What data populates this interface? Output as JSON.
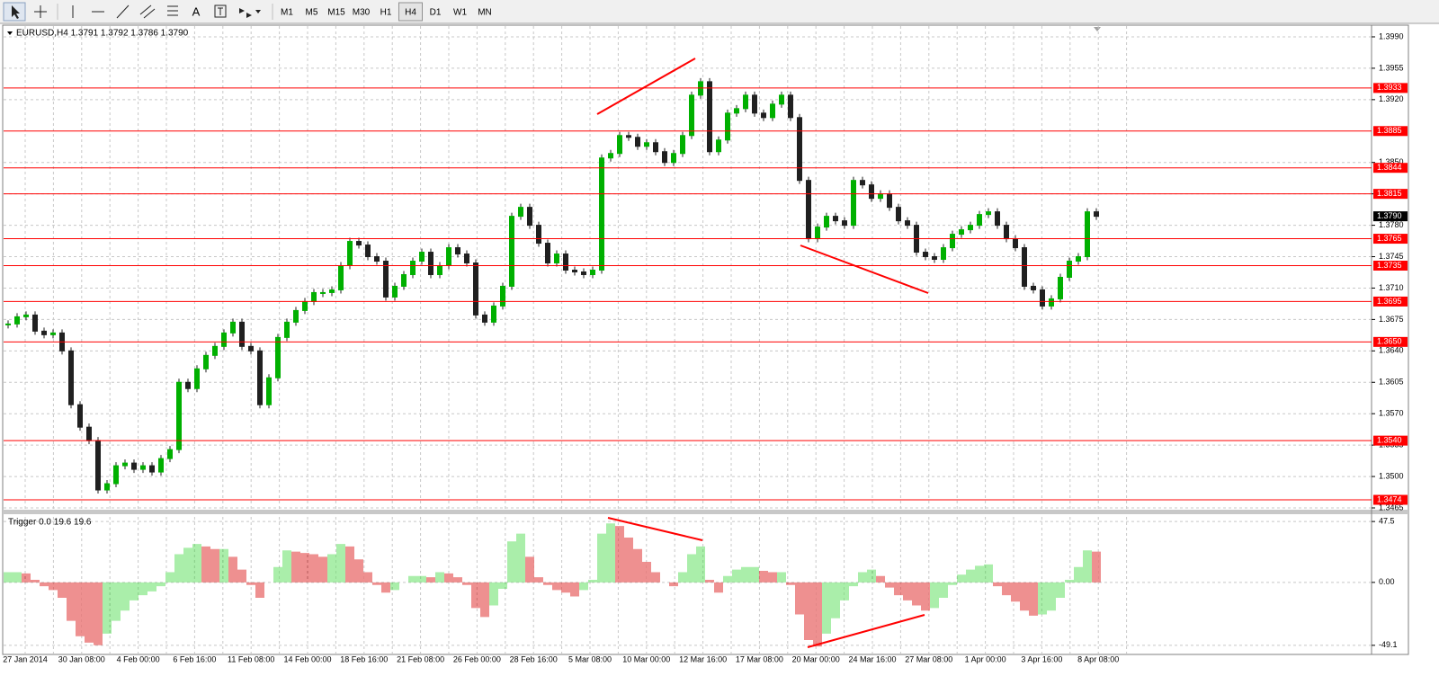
{
  "toolbar": {
    "text_tool": "A",
    "timeframes": [
      "M1",
      "M5",
      "M15",
      "M30",
      "H1",
      "H4",
      "D1",
      "W1",
      "MN"
    ],
    "selected_index": 5
  },
  "chart_data": [
    {
      "type": "candlestick",
      "title": "EURUSD,H4 1.3791 1.3792 1.3786 1.3790",
      "close": [
        1.367,
        1.3678,
        1.368,
        1.3662,
        1.3658,
        1.366,
        1.364,
        1.358,
        1.3555,
        1.354,
        1.3485,
        1.3492,
        1.3512,
        1.3515,
        1.3508,
        1.3512,
        1.3505,
        1.352,
        1.353,
        1.3605,
        1.3598,
        1.362,
        1.3635,
        1.3645,
        1.366,
        1.3672,
        1.3645,
        1.364,
        1.358,
        1.361,
        1.3655,
        1.3672,
        1.3685,
        1.3695,
        1.3705,
        1.3705,
        1.3708,
        1.3735,
        1.3762,
        1.3758,
        1.3745,
        1.374,
        1.37,
        1.3712,
        1.3725,
        1.374,
        1.375,
        1.3725,
        1.3735,
        1.3755,
        1.3748,
        1.3738,
        1.368,
        1.3672,
        1.369,
        1.3712,
        1.379,
        1.38,
        1.378,
        1.376,
        1.3738,
        1.3748,
        1.373,
        1.3728,
        1.3725,
        1.373,
        1.3855,
        1.386,
        1.388,
        1.3878,
        1.3868,
        1.3872,
        1.3862,
        1.385,
        1.386,
        1.388,
        1.3925,
        1.394,
        1.3862,
        1.3875,
        1.3905,
        1.391,
        1.3925,
        1.3905,
        1.39,
        1.3915,
        1.3925,
        1.39,
        1.383,
        1.3765,
        1.3778,
        1.379,
        1.3785,
        1.378,
        1.383,
        1.3825,
        1.381,
        1.3815,
        1.38,
        1.3785,
        1.378,
        1.375,
        1.3745,
        1.3742,
        1.3755,
        1.377,
        1.3775,
        1.378,
        1.3792,
        1.3795,
        1.378,
        1.3765,
        1.3755,
        1.3712,
        1.3708,
        1.369,
        1.3698,
        1.3722,
        1.374,
        1.3745,
        1.3795,
        1.379
      ],
      "up_color": "#00b000",
      "down_color": "#202020",
      "ylim": [
        1.3463,
        1.4001
      ],
      "yticks": [
        {
          "value": 1.399,
          "label": "1.3990"
        },
        1.3955,
        {
          "value": 1.392,
          "label": "1.3920"
        },
        {
          "value": 1.385,
          "label": "1.3850"
        },
        1.3815,
        {
          "value": 1.378,
          "label": "1.3780"
        },
        1.3745,
        {
          "value": 1.371,
          "label": "1.3710"
        },
        1.3675,
        {
          "value": 1.364,
          "label": "1.3640"
        },
        1.3605,
        {
          "value": 1.357,
          "label": "1.3570"
        },
        1.3535,
        {
          "value": 1.35,
          "label": "1.3500"
        },
        1.3465
      ],
      "grid": true,
      "hlines": [
        1.3933,
        1.3885,
        1.3844,
        1.3815,
        1.3765,
        1.3735,
        1.3695,
        {
          "value": 1.365,
          "label": "1.3650"
        },
        {
          "value": 1.354,
          "label": "1.3540"
        },
        1.3474
      ],
      "hline_color": "#ff0000",
      "last_price": {
        "value": 1.379,
        "label": "1.3790"
      },
      "x_labels": [
        "27 Jan 2014",
        "30 Jan 08:00",
        "4 Feb 00:00",
        "6 Feb 16:00",
        "11 Feb 08:00",
        "14 Feb 00:00",
        "18 Feb 16:00",
        "21 Feb 08:00",
        "26 Feb 00:00",
        "28 Feb 16:00",
        "5 Mar 08:00",
        "10 Mar 00:00",
        "12 Mar 16:00",
        "17 Mar 08:00",
        "20 Mar 00:00",
        "24 Mar 16:00",
        "27 Mar 08:00",
        "1 Apr 00:00",
        "3 Apr 16:00",
        "8 Apr 08:00"
      ]
    },
    {
      "type": "bar",
      "title": "Trigger 0.0 19.6 19.6",
      "values": [
        8,
        8,
        7,
        2,
        -3,
        -6,
        -12,
        -30,
        -42,
        -47,
        -49,
        -40,
        -30,
        -22,
        -14,
        -10,
        -7,
        -3,
        8,
        22,
        27,
        30,
        28,
        26,
        26,
        20,
        10,
        -2,
        -12,
        0,
        12,
        25,
        24,
        23,
        22,
        20,
        22,
        30,
        28,
        18,
        8,
        -2,
        -8,
        -6,
        0,
        5,
        5,
        4,
        8,
        7,
        4,
        -2,
        -20,
        -27,
        -18,
        -5,
        32,
        38,
        20,
        4,
        -2,
        -6,
        -8,
        -11,
        -6,
        2,
        38,
        46,
        44,
        35,
        26,
        16,
        8,
        0,
        -3,
        8,
        22,
        28,
        2,
        -8,
        5,
        10,
        12,
        12,
        9,
        8,
        8,
        -2,
        -25,
        -45,
        -50,
        -40,
        -28,
        -14,
        -3,
        8,
        10,
        5,
        -4,
        -10,
        -14,
        -18,
        -22,
        -20,
        -12,
        -2,
        6,
        10,
        13,
        14,
        -3,
        -10,
        -15,
        -22,
        -26,
        -25,
        -22,
        -12,
        2,
        12,
        25,
        24
      ],
      "up_color": "#55dd55",
      "down_color": "#dd2222",
      "ylim": [
        -54.1,
        52.5
      ],
      "yticks": [
        47.5,
        {
          "value": 0,
          "label": "0.00"
        },
        -49.1
      ],
      "grid": true
    }
  ]
}
